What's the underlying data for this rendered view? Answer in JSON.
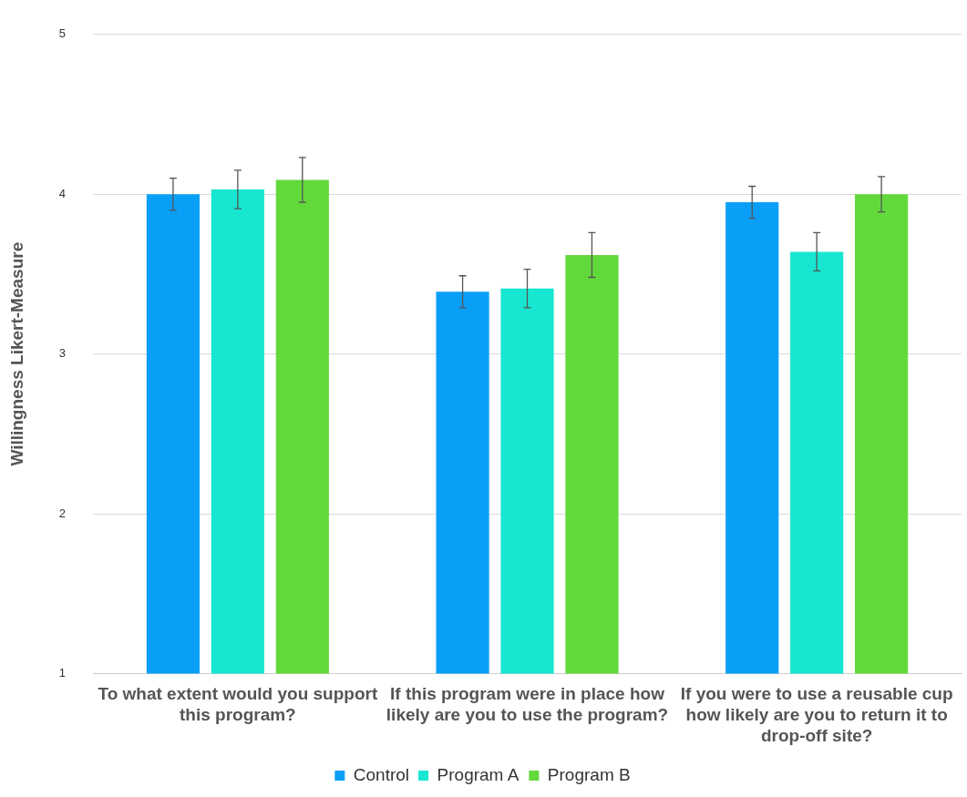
{
  "chart_data": {
    "type": "bar",
    "ylabel": "Willingness Likert-Measure",
    "categories": [
      "To what extent would you support this program?",
      "If this program were in place how likely are you to use the program?",
      "If you were to use a reusable cup how likely are you to return it to drop-off site?"
    ],
    "series": [
      {
        "name": "Control",
        "color": "#0a9ff7",
        "values": [
          4.0,
          3.39,
          3.95
        ],
        "errors": [
          0.1,
          0.1,
          0.1
        ]
      },
      {
        "name": "Program A",
        "color": "#17e6d0",
        "values": [
          4.03,
          3.41,
          3.64
        ],
        "errors": [
          0.12,
          0.12,
          0.12
        ]
      },
      {
        "name": "Program B",
        "color": "#62d93b",
        "values": [
          4.09,
          3.62,
          4.0
        ],
        "errors": [
          0.14,
          0.14,
          0.11
        ]
      }
    ],
    "ylim": [
      1,
      5
    ],
    "yticks": [
      1,
      2,
      3,
      4,
      5
    ],
    "grid": "y",
    "legend": "bottom"
  }
}
